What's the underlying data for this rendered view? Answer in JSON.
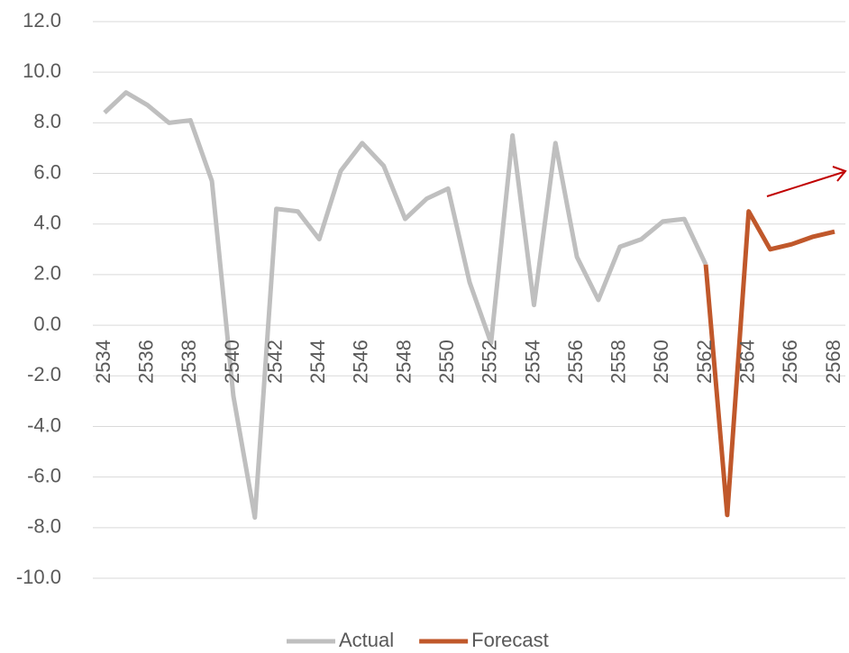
{
  "chart_data": {
    "type": "line",
    "x": [
      2534,
      2535,
      2536,
      2537,
      2538,
      2539,
      2540,
      2541,
      2542,
      2543,
      2544,
      2545,
      2546,
      2547,
      2548,
      2549,
      2550,
      2551,
      2552,
      2553,
      2554,
      2555,
      2556,
      2557,
      2558,
      2559,
      2560,
      2561,
      2562,
      2563,
      2564,
      2565,
      2566,
      2567,
      2568
    ],
    "series": [
      {
        "name": "Actual",
        "color": "#bfbfbf",
        "values": [
          8.4,
          9.2,
          8.7,
          8.0,
          8.1,
          5.7,
          -2.8,
          -7.6,
          4.6,
          4.5,
          3.4,
          6.1,
          7.2,
          6.3,
          4.2,
          5.0,
          5.4,
          1.7,
          -0.7,
          7.5,
          0.8,
          7.2,
          2.7,
          1.0,
          3.1,
          3.4,
          4.1,
          4.2,
          2.4,
          null,
          null,
          null,
          null,
          null,
          null
        ]
      },
      {
        "name": "Forecast",
        "color": "#c0582b",
        "values": [
          null,
          null,
          null,
          null,
          null,
          null,
          null,
          null,
          null,
          null,
          null,
          null,
          null,
          null,
          null,
          null,
          null,
          null,
          null,
          null,
          null,
          null,
          null,
          null,
          null,
          null,
          null,
          null,
          2.4,
          -7.5,
          4.5,
          3.0,
          3.2,
          3.5,
          3.7
        ]
      }
    ],
    "xlim": [
      2534,
      2568
    ],
    "xticks": [
      2534,
      2536,
      2538,
      2540,
      2542,
      2544,
      2546,
      2548,
      2550,
      2552,
      2554,
      2556,
      2558,
      2560,
      2562,
      2564,
      2566,
      2568
    ],
    "ylim": [
      -10,
      12
    ],
    "yticks": [
      {
        "value": -10,
        "label": "-10.0"
      },
      {
        "value": -8,
        "label": "-8.0"
      },
      {
        "value": -6,
        "label": "-6.0"
      },
      {
        "value": -4,
        "label": "-4.0"
      },
      {
        "value": -2,
        "label": "-2.0"
      },
      {
        "value": 0,
        "label": "0.0"
      },
      {
        "value": 2,
        "label": "2.0"
      },
      {
        "value": 4,
        "label": "4.0"
      },
      {
        "value": 6,
        "label": "6.0"
      },
      {
        "value": 8,
        "label": "8.0"
      },
      {
        "value": 10,
        "label": "10.0"
      },
      {
        "value": 12,
        "label": "12.0"
      }
    ],
    "grid": true
  }
}
